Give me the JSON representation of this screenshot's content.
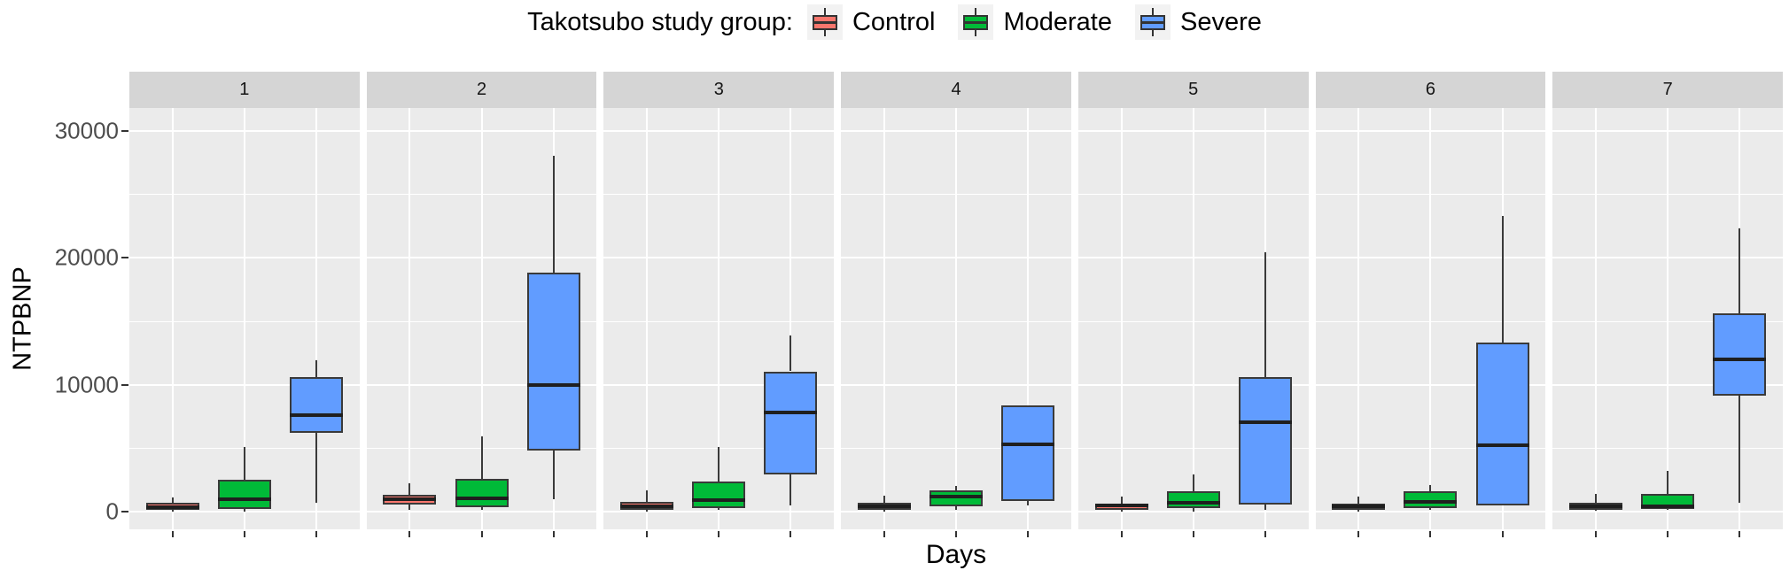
{
  "legend": {
    "title": "Takotsubo study group:",
    "items": [
      {
        "label": "Control",
        "color": "#F8766D"
      },
      {
        "label": "Moderate",
        "color": "#00BA38"
      },
      {
        "label": "Severe",
        "color": "#619CFF"
      }
    ]
  },
  "chart_data": {
    "type": "boxplot",
    "facet_variable": "Days",
    "xlabel": "Days",
    "ylabel": "NTPBNP",
    "groups": [
      "Control",
      "Moderate",
      "Severe"
    ],
    "group_colors": {
      "Control": "#F8766D",
      "Moderate": "#00BA38",
      "Severe": "#619CFF"
    },
    "ylim": [
      -1400,
      31800
    ],
    "y_ticks": [
      0,
      10000,
      20000,
      30000
    ],
    "y_tick_labels": [
      "0",
      "10000",
      "20000",
      "30000"
    ],
    "y_minor_ticks": [
      5000,
      15000,
      25000
    ],
    "grid": true,
    "legend_position": "top",
    "style": {
      "panel_background": "#EBEBEB",
      "strip_background": "#D5D5D5",
      "gridline_color": "#FFFFFF",
      "box_border_color": "#3A3A3A",
      "median_color": "#1F1F1F",
      "axis_text_color": "#4D4D4D",
      "legend_key_background": "#F2F2F2"
    },
    "series": [
      {
        "facet": "1",
        "boxes": [
          {
            "group": "Control",
            "min": 0,
            "q1": 100,
            "median": 350,
            "q3": 700,
            "max": 1100
          },
          {
            "group": "Moderate",
            "min": 0,
            "q1": 200,
            "median": 1000,
            "q3": 2500,
            "max": 5100
          },
          {
            "group": "Severe",
            "min": 700,
            "q1": 6200,
            "median": 7600,
            "q3": 10600,
            "max": 11900
          }
        ]
      },
      {
        "facet": "2",
        "boxes": [
          {
            "group": "Control",
            "min": 150,
            "q1": 550,
            "median": 1000,
            "q3": 1350,
            "max": 2200
          },
          {
            "group": "Moderate",
            "min": 150,
            "q1": 350,
            "median": 1050,
            "q3": 2600,
            "max": 5950
          },
          {
            "group": "Severe",
            "min": 1000,
            "q1": 4800,
            "median": 10000,
            "q3": 18800,
            "max": 28000
          }
        ]
      },
      {
        "facet": "3",
        "boxes": [
          {
            "group": "Control",
            "min": 0,
            "q1": 100,
            "median": 400,
            "q3": 750,
            "max": 1650
          },
          {
            "group": "Moderate",
            "min": 100,
            "q1": 250,
            "median": 900,
            "q3": 2400,
            "max": 5100
          },
          {
            "group": "Severe",
            "min": 500,
            "q1": 2900,
            "median": 7800,
            "q3": 11050,
            "max": 13900
          }
        ]
      },
      {
        "facet": "4",
        "boxes": [
          {
            "group": "Control",
            "min": 0,
            "q1": 100,
            "median": 400,
            "q3": 700,
            "max": 1250
          },
          {
            "group": "Moderate",
            "min": 100,
            "q1": 400,
            "median": 1150,
            "q3": 1650,
            "max": 2050
          },
          {
            "group": "Severe",
            "min": 450,
            "q1": 800,
            "median": 5300,
            "q3": 8350,
            "max": 8350
          }
        ]
      },
      {
        "facet": "5",
        "boxes": [
          {
            "group": "Control",
            "min": 0,
            "q1": 150,
            "median": 480,
            "q3": 620,
            "max": 1200
          },
          {
            "group": "Moderate",
            "min": 0,
            "q1": 280,
            "median": 680,
            "q3": 1600,
            "max": 2900
          },
          {
            "group": "Severe",
            "min": 150,
            "q1": 550,
            "median": 7050,
            "q3": 10600,
            "max": 20400
          }
        ]
      },
      {
        "facet": "6",
        "boxes": [
          {
            "group": "Control",
            "min": 0,
            "q1": 100,
            "median": 400,
            "q3": 620,
            "max": 1150
          },
          {
            "group": "Moderate",
            "min": 100,
            "q1": 260,
            "median": 750,
            "q3": 1600,
            "max": 2100
          },
          {
            "group": "Severe",
            "min": 450,
            "q1": 450,
            "median": 5250,
            "q3": 13300,
            "max": 23300
          }
        ]
      },
      {
        "facet": "7",
        "boxes": [
          {
            "group": "Control",
            "min": 100,
            "q1": 150,
            "median": 400,
            "q3": 700,
            "max": 1370
          },
          {
            "group": "Moderate",
            "min": 100,
            "q1": 220,
            "median": 400,
            "q3": 1380,
            "max": 3190
          },
          {
            "group": "Severe",
            "min": 700,
            "q1": 9150,
            "median": 12000,
            "q3": 15600,
            "max": 22300
          }
        ]
      }
    ]
  }
}
